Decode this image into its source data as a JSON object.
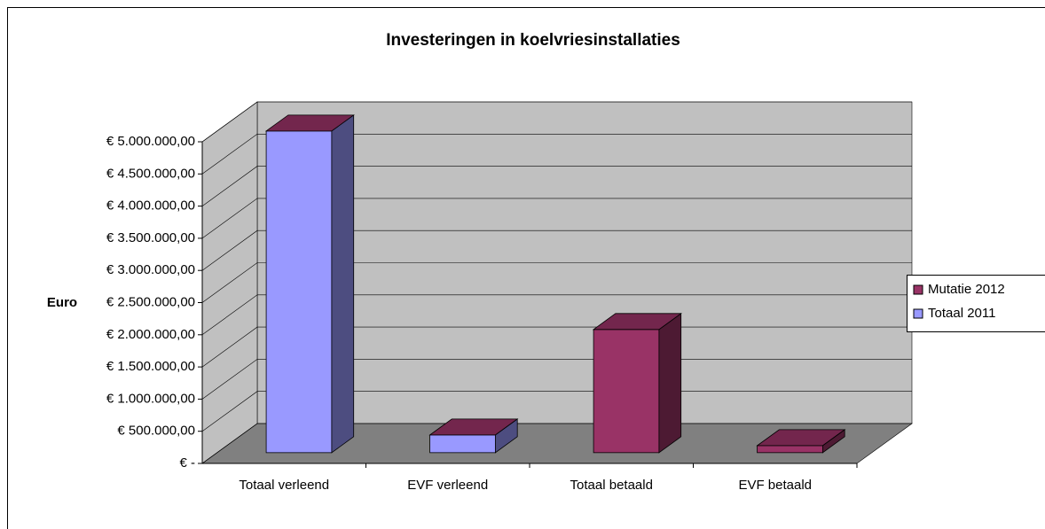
{
  "chart_data": {
    "type": "bar3d_stacked",
    "title": "Investeringen in koelvriesinstallaties",
    "y_label": "Euro",
    "categories": [
      "Totaal verleend",
      "EVF verleend",
      "Totaal betaald",
      "EVF betaald"
    ],
    "series": [
      {
        "name": "Mutatie 2012",
        "color": "#993366",
        "values": [
          0,
          0,
          1915000,
          110000
        ]
      },
      {
        "name": "Totaal 2011",
        "color": "#9999ff",
        "values": [
          5000000,
          275000,
          0,
          0
        ]
      }
    ],
    "ylim": [
      0,
      5000000
    ],
    "yticks": [
      {
        "value": 0,
        "label": "€ -"
      },
      {
        "value": 500000,
        "label": "€ 500.000,00"
      },
      {
        "value": 1000000,
        "label": "€ 1.000.000,00"
      },
      {
        "value": 1500000,
        "label": "€ 1.500.000,00"
      },
      {
        "value": 2000000,
        "label": "€ 2.000.000,00"
      },
      {
        "value": 2500000,
        "label": "€ 2.500.000,00"
      },
      {
        "value": 3000000,
        "label": "€ 3.000.000,00"
      },
      {
        "value": 3500000,
        "label": "€ 3.500.000,00"
      },
      {
        "value": 4000000,
        "label": "€ 4.000.000,00"
      },
      {
        "value": 4500000,
        "label": "€ 4.500.000,00"
      },
      {
        "value": 5000000,
        "label": "€ 5.000.000,00"
      }
    ],
    "grid": true,
    "legend": "right"
  }
}
